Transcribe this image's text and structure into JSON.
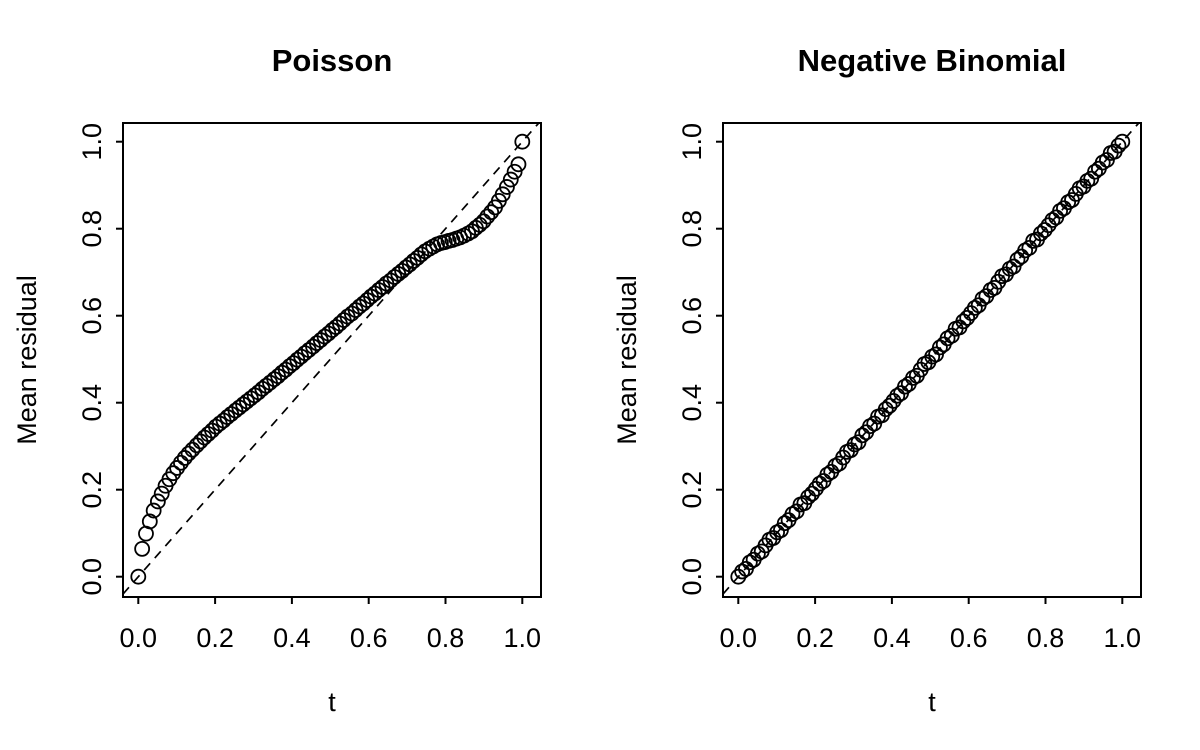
{
  "background": "#ffffff",
  "foreground": "#000000",
  "chart_data": [
    {
      "type": "scatter",
      "title": "Poisson",
      "xlabel": "t",
      "ylabel": "Mean residual",
      "xlim": [
        0,
        1
      ],
      "ylim": [
        0,
        1
      ],
      "grid": false,
      "legend": "none",
      "marker": "open-circle",
      "xticks": [
        0,
        0.2,
        0.4,
        0.6,
        0.8,
        1.0
      ],
      "xtick_labels": [
        "0.0",
        "0.2",
        "0.4",
        "0.6",
        "0.8",
        "1.0"
      ],
      "yticks": [
        0,
        0.2,
        0.4,
        0.6,
        0.8,
        1.0
      ],
      "ytick_labels": [
        "0.0",
        "0.2",
        "0.4",
        "0.6",
        "0.8",
        "1.0"
      ],
      "reference_line": {
        "name": "identity",
        "style": "dashed",
        "from": [
          0,
          0
        ],
        "to": [
          1,
          1
        ]
      },
      "series": [
        {
          "name": "mean-residual",
          "t": [
            0,
            0.01,
            0.02,
            0.03,
            0.04,
            0.051,
            0.061,
            0.071,
            0.081,
            0.091,
            0.101,
            0.111,
            0.121,
            0.131,
            0.141,
            0.152,
            0.162,
            0.172,
            0.182,
            0.192,
            0.202,
            0.212,
            0.222,
            0.232,
            0.242,
            0.253,
            0.263,
            0.273,
            0.283,
            0.293,
            0.303,
            0.313,
            0.323,
            0.333,
            0.343,
            0.354,
            0.364,
            0.374,
            0.384,
            0.394,
            0.404,
            0.414,
            0.424,
            0.434,
            0.444,
            0.455,
            0.465,
            0.475,
            0.485,
            0.495,
            0.505,
            0.515,
            0.525,
            0.535,
            0.545,
            0.556,
            0.566,
            0.576,
            0.586,
            0.596,
            0.606,
            0.616,
            0.626,
            0.636,
            0.646,
            0.657,
            0.667,
            0.677,
            0.687,
            0.697,
            0.707,
            0.717,
            0.727,
            0.737,
            0.747,
            0.758,
            0.768,
            0.778,
            0.788,
            0.798,
            0.808,
            0.818,
            0.828,
            0.838,
            0.848,
            0.859,
            0.869,
            0.879,
            0.889,
            0.899,
            0.909,
            0.919,
            0.929,
            0.939,
            0.949,
            0.96,
            0.97,
            0.98,
            0.99,
            1
          ],
          "y": [
            0,
            0.064,
            0.099,
            0.127,
            0.152,
            0.173,
            0.191,
            0.209,
            0.224,
            0.238,
            0.25,
            0.262,
            0.273,
            0.283,
            0.292,
            0.302,
            0.311,
            0.32,
            0.328,
            0.336,
            0.345,
            0.352,
            0.359,
            0.367,
            0.374,
            0.382,
            0.389,
            0.396,
            0.403,
            0.41,
            0.417,
            0.424,
            0.432,
            0.439,
            0.446,
            0.454,
            0.461,
            0.469,
            0.476,
            0.484,
            0.491,
            0.499,
            0.506,
            0.514,
            0.521,
            0.529,
            0.537,
            0.544,
            0.552,
            0.559,
            0.567,
            0.574,
            0.582,
            0.59,
            0.598,
            0.605,
            0.613,
            0.621,
            0.628,
            0.636,
            0.644,
            0.651,
            0.659,
            0.666,
            0.674,
            0.681,
            0.689,
            0.696,
            0.703,
            0.711,
            0.718,
            0.726,
            0.733,
            0.741,
            0.748,
            0.754,
            0.759,
            0.764,
            0.767,
            0.769,
            0.772,
            0.774,
            0.777,
            0.78,
            0.784,
            0.789,
            0.794,
            0.802,
            0.809,
            0.817,
            0.828,
            0.838,
            0.849,
            0.864,
            0.879,
            0.896,
            0.913,
            0.931,
            0.948,
            1
          ]
        }
      ]
    },
    {
      "type": "scatter",
      "title": "Negative Binomial",
      "xlabel": "t",
      "ylabel": "Mean residual",
      "xlim": [
        0,
        1
      ],
      "ylim": [
        0,
        1
      ],
      "grid": false,
      "legend": "none",
      "marker": "open-circle",
      "xticks": [
        0,
        0.2,
        0.4,
        0.6,
        0.8,
        1.0
      ],
      "xtick_labels": [
        "0.0",
        "0.2",
        "0.4",
        "0.6",
        "0.8",
        "1.0"
      ],
      "yticks": [
        0,
        0.2,
        0.4,
        0.6,
        0.8,
        1.0
      ],
      "ytick_labels": [
        "0.0",
        "0.2",
        "0.4",
        "0.6",
        "0.8",
        "1.0"
      ],
      "reference_line": {
        "name": "identity",
        "style": "dashed",
        "from": [
          0,
          0
        ],
        "to": [
          1,
          1
        ]
      },
      "series": [
        {
          "name": "mean-residual",
          "t": [
            0,
            0.01,
            0.02,
            0.03,
            0.04,
            0.051,
            0.061,
            0.071,
            0.081,
            0.091,
            0.101,
            0.111,
            0.121,
            0.131,
            0.141,
            0.152,
            0.162,
            0.172,
            0.182,
            0.192,
            0.202,
            0.212,
            0.222,
            0.232,
            0.242,
            0.253,
            0.263,
            0.273,
            0.283,
            0.293,
            0.303,
            0.313,
            0.323,
            0.333,
            0.343,
            0.354,
            0.364,
            0.374,
            0.384,
            0.394,
            0.404,
            0.414,
            0.424,
            0.434,
            0.444,
            0.455,
            0.465,
            0.475,
            0.485,
            0.495,
            0.505,
            0.515,
            0.525,
            0.535,
            0.545,
            0.556,
            0.566,
            0.576,
            0.586,
            0.596,
            0.606,
            0.616,
            0.626,
            0.636,
            0.646,
            0.657,
            0.667,
            0.677,
            0.687,
            0.697,
            0.707,
            0.717,
            0.727,
            0.737,
            0.747,
            0.758,
            0.768,
            0.778,
            0.788,
            0.798,
            0.808,
            0.818,
            0.828,
            0.838,
            0.848,
            0.859,
            0.869,
            0.879,
            0.889,
            0.899,
            0.909,
            0.919,
            0.929,
            0.939,
            0.949,
            0.96,
            0.97,
            0.98,
            0.99,
            1
          ],
          "y": [
            0,
            0.012,
            0.018,
            0.033,
            0.039,
            0.053,
            0.058,
            0.072,
            0.085,
            0.089,
            0.102,
            0.107,
            0.123,
            0.13,
            0.144,
            0.15,
            0.166,
            0.169,
            0.183,
            0.191,
            0.202,
            0.214,
            0.22,
            0.235,
            0.241,
            0.255,
            0.26,
            0.274,
            0.287,
            0.291,
            0.304,
            0.309,
            0.325,
            0.332,
            0.346,
            0.352,
            0.368,
            0.371,
            0.385,
            0.393,
            0.404,
            0.416,
            0.422,
            0.437,
            0.443,
            0.457,
            0.462,
            0.476,
            0.489,
            0.493,
            0.506,
            0.511,
            0.527,
            0.534,
            0.548,
            0.554,
            0.57,
            0.573,
            0.587,
            0.595,
            0.606,
            0.618,
            0.624,
            0.639,
            0.645,
            0.659,
            0.664,
            0.678,
            0.691,
            0.695,
            0.708,
            0.713,
            0.729,
            0.736,
            0.75,
            0.756,
            0.772,
            0.775,
            0.789,
            0.797,
            0.808,
            0.82,
            0.826,
            0.841,
            0.847,
            0.861,
            0.866,
            0.88,
            0.893,
            0.897,
            0.91,
            0.915,
            0.931,
            0.938,
            0.952,
            0.958,
            0.974,
            0.977,
            0.991,
            1
          ]
        }
      ]
    }
  ]
}
